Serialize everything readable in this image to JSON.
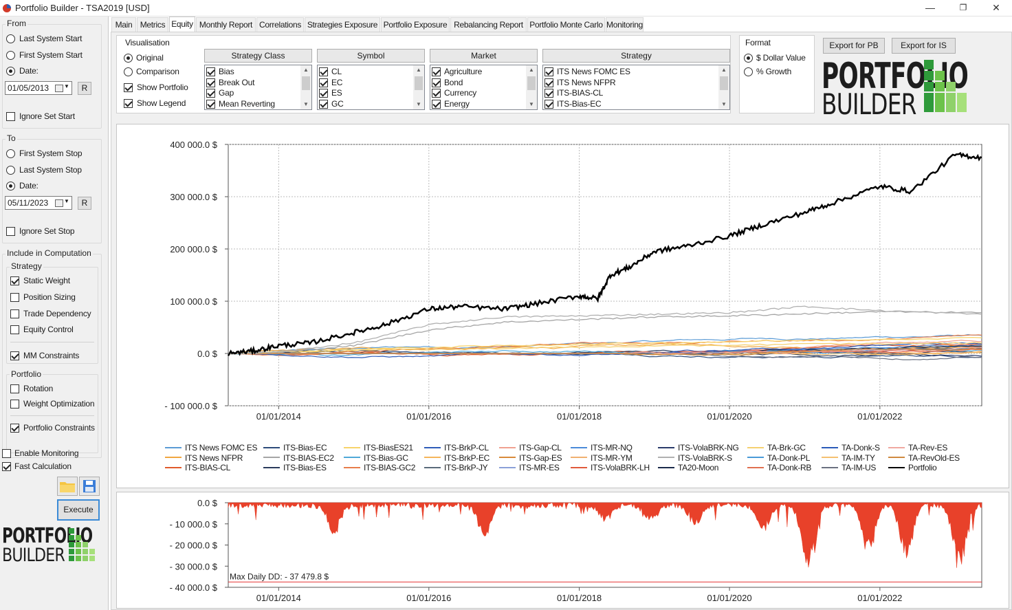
{
  "window": {
    "title": "Portfolio Builder - TSA2019 [USD]",
    "minimize": "—",
    "maximize": "❐",
    "close": "✕"
  },
  "left": {
    "from": {
      "title": "From",
      "last_system_start": "Last System Start",
      "first_system_start": "First System Start",
      "date_label": "Date:",
      "date_value": "01/05/2013",
      "reset": "R",
      "ignore_set_start": "Ignore Set Start"
    },
    "to": {
      "title": "To",
      "first_system_stop": "First System Stop",
      "last_system_stop": "Last System Stop",
      "date_label": "Date:",
      "date_value": "05/11/2023",
      "reset": "R",
      "ignore_set_stop": "Ignore Set Stop"
    },
    "include": {
      "title": "Include in Computation",
      "strategy": {
        "title": "Strategy",
        "static_weight": "Static Weight",
        "position_sizing": "Position Sizing",
        "trade_dependency": "Trade Dependency",
        "equity_control": "Equity Control",
        "mm_constraints": "MM Constraints"
      },
      "portfolio": {
        "title": "Portfolio",
        "rotation": "Rotation",
        "weight_optimization": "Weight Optimization",
        "portfolio_constraints": "Portfolio Constraints"
      }
    },
    "enable_monitoring": "Enable Monitoring",
    "fast_calculation": "Fast Calculation",
    "execute": "Execute"
  },
  "tabs": [
    "Main",
    "Metrics",
    "Equity",
    "Monthly Report",
    "Correlations",
    "Strategies Exposure",
    "Portfolio Exposure",
    "Rebalancing Report",
    "Portfolio Monte Carlo",
    "Monitoring"
  ],
  "active_tab": "Equity",
  "visualisation": {
    "title": "Visualisation",
    "original": "Original",
    "comparison": "Comparison",
    "show_portfolio": "Show Portfolio",
    "show_legend": "Show Legend"
  },
  "lists": {
    "strategy_class": {
      "header": "Strategy Class",
      "items": [
        "Bias",
        "Break Out",
        "Gap",
        "Mean Reverting"
      ]
    },
    "symbol": {
      "header": "Symbol",
      "items": [
        "CL",
        "EC",
        "ES",
        "GC"
      ]
    },
    "market": {
      "header": "Market",
      "items": [
        "Agriculture",
        "Bond",
        "Currency",
        "Energy"
      ]
    },
    "strategy": {
      "header": "Strategy",
      "items": [
        "ITS News FOMC ES",
        "ITS News NFPR",
        "ITS-BIAS-CL",
        "ITS-Bias-EC"
      ]
    }
  },
  "format": {
    "title": "Format",
    "dollar_value": "$ Dollar Value",
    "growth": "% Growth"
  },
  "export_pb": "Export for PB",
  "export_is": "Export for IS",
  "logo": {
    "line1": "PORTFOLIO",
    "line2": "BUILDER"
  },
  "legend": [
    {
      "name": "ITS News FOMC ES",
      "color": "#5b9bd5"
    },
    {
      "name": "ITS News NFPR",
      "color": "#f0a640"
    },
    {
      "name": "ITS-BIAS-CL",
      "color": "#e05a2a"
    },
    {
      "name": "ITS-Bias-EC",
      "color": "#2d4b7a"
    },
    {
      "name": "ITS-BIAS-EC2",
      "color": "#a5a5a5"
    },
    {
      "name": "ITS-Bias-ES",
      "color": "#2a3a5c"
    },
    {
      "name": "ITS-BiasES21",
      "color": "#f7d36a"
    },
    {
      "name": "ITS-Bias-GC",
      "color": "#4fa8d8"
    },
    {
      "name": "ITS-BIAS-GC2",
      "color": "#e87d4a"
    },
    {
      "name": "ITS-BrkP-CL",
      "color": "#2e5cb8"
    },
    {
      "name": "ITS-BrkP-EC",
      "color": "#f5b55a"
    },
    {
      "name": "ITS-BrkP-JY",
      "color": "#5a6a7a"
    },
    {
      "name": "ITS-Gap-CL",
      "color": "#f0a090"
    },
    {
      "name": "ITS-Gap-ES",
      "color": "#d98a3a"
    },
    {
      "name": "ITS-MR-ES",
      "color": "#8aa0d8"
    },
    {
      "name": "ITS-MR-NQ",
      "color": "#4a8ad8"
    },
    {
      "name": "ITS-MR-YM",
      "color": "#f0b070"
    },
    {
      "name": "ITS-VolaBRK-LH",
      "color": "#e05a3a"
    },
    {
      "name": "ITS-VolaBRK-NG",
      "color": "#2a3a6a"
    },
    {
      "name": "ITS-VolaBRK-S",
      "color": "#b0b0b0"
    },
    {
      "name": "TA20-Moon",
      "color": "#1a2a4a"
    },
    {
      "name": "TA-Brk-GC",
      "color": "#f5d070"
    },
    {
      "name": "TA-Donk-PL",
      "color": "#4a9ad8"
    },
    {
      "name": "TA-Donk-RB",
      "color": "#e07050"
    },
    {
      "name": "TA-Donk-S",
      "color": "#2a5ab8"
    },
    {
      "name": "TA-IM-TY",
      "color": "#f5c070"
    },
    {
      "name": "TA-IM-US",
      "color": "#6a7080"
    },
    {
      "name": "TA-Rev-ES",
      "color": "#f0a8a0"
    },
    {
      "name": "TA-RevOld-ES",
      "color": "#d08a40"
    },
    {
      "name": "Portfolio",
      "color": "#000000"
    }
  ],
  "chart_data": [
    {
      "type": "line",
      "title": "",
      "y_ticks": [
        "400 000.0 $",
        "300 000.0 $",
        "200 000.0 $",
        "100 000.0 $",
        "0.0 $",
        "- 100 000.0 $"
      ],
      "x_ticks": [
        "01/01/2014",
        "01/01/2016",
        "01/01/2018",
        "01/01/2020",
        "01/01/2022"
      ],
      "ylim": [
        -100000,
        400000
      ],
      "xlim": [
        "2013-05-01",
        "2023-05-11"
      ],
      "grid": true,
      "legend_position": "bottom",
      "series": [
        {
          "name": "Portfolio",
          "x": [
            "2013-05-01",
            "2013-09-01",
            "2014-01-01",
            "2014-06-01",
            "2015-01-01",
            "2015-06-01",
            "2016-01-01",
            "2016-06-01",
            "2017-01-01",
            "2017-06-01",
            "2018-01-01",
            "2018-04-01",
            "2018-06-01",
            "2018-09-01",
            "2019-01-01",
            "2019-06-01",
            "2020-01-01",
            "2020-06-01",
            "2021-01-01",
            "2021-06-01",
            "2022-01-01",
            "2022-06-01",
            "2023-01-01",
            "2023-05-11"
          ],
          "y": [
            0,
            5000,
            15000,
            20000,
            40000,
            55000,
            85000,
            90000,
            85000,
            95000,
            110000,
            105000,
            150000,
            165000,
            195000,
            205000,
            225000,
            245000,
            270000,
            290000,
            320000,
            310000,
            380000,
            375000
          ]
        },
        {
          "name": "ITS-VolaBRK-S",
          "x": [
            "2013-05-01",
            "2014-01-01",
            "2015-01-01",
            "2016-01-01",
            "2017-01-01",
            "2018-01-01",
            "2019-01-01",
            "2020-01-01",
            "2021-01-01",
            "2022-01-01",
            "2023-05-11"
          ],
          "y": [
            0,
            3000,
            20000,
            55000,
            70000,
            72000,
            75000,
            78000,
            90000,
            82000,
            75000
          ]
        },
        {
          "name": "ITS-BIAS-EC2",
          "x": [
            "2013-05-01",
            "2014-01-01",
            "2015-01-01",
            "2016-01-01",
            "2017-01-01",
            "2018-01-01",
            "2019-01-01",
            "2020-01-01",
            "2021-01-01",
            "2022-01-01",
            "2023-05-11"
          ],
          "y": [
            0,
            2000,
            15000,
            45000,
            60000,
            65000,
            70000,
            72000,
            76000,
            80000,
            78000
          ]
        },
        {
          "name": "ITS-BiasES21",
          "x": [
            "2013-05-01",
            "2015-01-01",
            "2017-01-01",
            "2019-01-01",
            "2021-01-01",
            "2023-05-11"
          ],
          "y": [
            0,
            8000,
            15000,
            20000,
            25000,
            30000
          ]
        },
        {
          "name": "TA-Brk-GC",
          "x": [
            "2013-05-01",
            "2015-01-01",
            "2017-01-01",
            "2019-01-01",
            "2021-01-01",
            "2023-05-11"
          ],
          "y": [
            0,
            6000,
            10000,
            14000,
            18000,
            20000
          ]
        }
      ]
    },
    {
      "type": "area",
      "title": "",
      "annotation": "Max Daily DD: - 37 479.8 $",
      "y_ticks": [
        "0.0 $",
        "- 10 000.0 $",
        "- 20 000.0 $",
        "- 30 000.0 $",
        "- 40 000.0 $"
      ],
      "x_ticks": [
        "01/01/2014",
        "01/01/2016",
        "01/01/2018",
        "01/01/2020",
        "01/01/2022"
      ],
      "ylim": [
        -40000,
        0
      ],
      "max_dd": -37479.8,
      "color": "#e8412a"
    }
  ]
}
